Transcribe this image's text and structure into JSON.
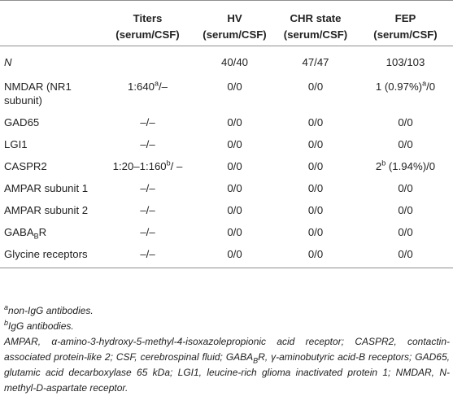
{
  "table": {
    "headers": [
      {
        "line1": "",
        "line2": ""
      },
      {
        "line1": "Titers",
        "line2": "(serum/CSF)"
      },
      {
        "line1": "HV",
        "line2": "(serum/CSF)"
      },
      {
        "line1": "CHR state",
        "line2": "(serum/CSF)"
      },
      {
        "line1": "FEP",
        "line2": "(serum/CSF)"
      }
    ],
    "rows": {
      "n": [
        "N",
        "",
        "40/40",
        "47/47",
        "103/103"
      ],
      "nmdar": {
        "label_line1": "NMDAR (NR1",
        "label_line2": "subunit",
        "label_line2_close": ")",
        "titer_pre": "1:640",
        "titer_sup": "a",
        "titer_post": "/–",
        "hv": "0/0",
        "chr": "0/0",
        "fep_pre": "1 (0.97%)",
        "fep_sup": "a",
        "fep_post": "/0"
      },
      "gad65": [
        "GAD65",
        "–/–",
        "0/0",
        "0/0",
        "0/0"
      ],
      "lgi1": [
        "LGI1",
        "–/–",
        "0/0",
        "0/0",
        "0/0"
      ],
      "caspr2": {
        "label": "CASPR2",
        "titer_pre": "1:20–1:160",
        "titer_sup": "b",
        "titer_post": "/ –",
        "hv": "0/0",
        "chr": "0/0",
        "fep_pre": "2",
        "fep_sup": "b",
        "fep_post": " (1.94%)/0"
      },
      "ampar1": [
        "AMPAR subunit 1",
        "–/–",
        "0/0",
        "0/0",
        "0/0"
      ],
      "ampar2": [
        "AMPAR subunit 2",
        "–/–",
        "0/0",
        "0/0",
        "0/0"
      ],
      "gabab": {
        "label_pre": "GABA",
        "label_sub": "B",
        "label_post": "R",
        "titer": "–/–",
        "hv": "0/0",
        "chr": "0/0",
        "fep": "0/0"
      },
      "glycine": [
        "Glycine receptors",
        "–/–",
        "0/0",
        "0/0",
        "0/0"
      ]
    }
  },
  "footnotes": {
    "a_mark": "a",
    "a_text": "non-IgG antibodies.",
    "b_mark": "b",
    "b_text": "IgG antibodies.",
    "abbr_part1": "AMPAR, α-amino-3-hydroxy-5-methyl-4-isoxazolepropionic acid receptor; CASPR2, contactin-associated protein-like 2; CSF, cerebrospinal fluid; GABA",
    "abbr_sub": "B",
    "abbr_part2": "R, γ-aminobutyric acid-B receptors; GAD65, glutamic acid decarboxylase 65 kDa; LGI1, leucine-rich glioma inactivated protein 1; NMDAR, N-methyl-D-aspartate receptor."
  }
}
